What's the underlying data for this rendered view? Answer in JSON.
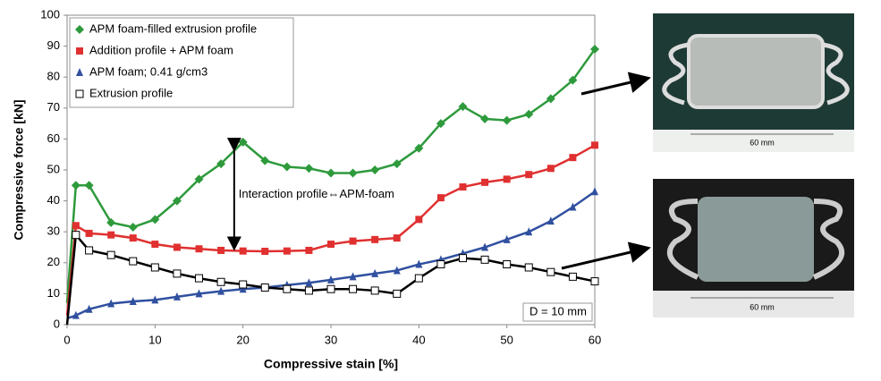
{
  "chart_data": {
    "type": "line",
    "x_label": "Compressive stain [%]",
    "y_label": "Compressive force [kN]",
    "xlim": [
      0,
      60
    ],
    "ylim": [
      0,
      100
    ],
    "xticks": [
      0,
      10,
      20,
      30,
      40,
      50,
      60
    ],
    "yticks": [
      0,
      10,
      20,
      30,
      40,
      50,
      60,
      70,
      80,
      90,
      100
    ],
    "grid": false,
    "legend": "upper left",
    "x": [
      0,
      1,
      2.5,
      5,
      7.5,
      10,
      12.5,
      15,
      17.5,
      20,
      22.5,
      25,
      27.5,
      30,
      32.5,
      35,
      37.5,
      40,
      42.5,
      45,
      47.5,
      50,
      52.5,
      55,
      57.5,
      60
    ],
    "series": [
      {
        "name": "APM foam-filled extrusion profile",
        "color": "#2e9a3c",
        "marker": "diamond",
        "values": [
          7,
          45,
          45,
          33,
          31.5,
          34,
          40,
          47,
          52,
          59,
          53,
          51,
          50.5,
          49,
          49,
          50,
          52,
          57,
          65,
          70.5,
          66.5,
          66,
          68,
          73,
          79,
          89
        ]
      },
      {
        "name": "Addition profile + APM foam",
        "color": "#e03030",
        "marker": "square",
        "values": [
          3,
          32,
          29.5,
          29,
          28,
          26,
          25,
          24.5,
          24,
          23.8,
          23.7,
          23.8,
          24,
          26,
          27,
          27.5,
          28,
          34,
          41,
          44.5,
          46,
          47,
          48.5,
          50.5,
          54,
          58
        ]
      },
      {
        "name": "APM foam; 0.41 g/cm3",
        "color": "#3050a0",
        "marker": "triangle",
        "values": [
          2,
          3,
          5,
          6.8,
          7.5,
          8,
          9,
          10,
          10.8,
          11.5,
          12,
          12.8,
          13.5,
          14.5,
          15.5,
          16.5,
          17.5,
          19.5,
          21,
          23,
          25,
          27.5,
          30,
          33.5,
          38,
          43
        ]
      },
      {
        "name": "Extrusion profile",
        "color": "#000000",
        "marker": "open-square",
        "values": [
          0,
          29,
          24,
          22.5,
          20.5,
          18.5,
          16.5,
          15,
          13.8,
          13,
          12,
          11.5,
          11,
          11.5,
          11.5,
          11,
          10,
          15,
          19.5,
          21.5,
          21,
          19.5,
          18.5,
          17,
          15.5,
          14
        ]
      }
    ],
    "annotation": "Interaction profile⇔APM-foam",
    "note": "D = 10 mm"
  },
  "photos": [
    {
      "scale_label": "60 mm"
    },
    {
      "scale_label": "60 mm"
    }
  ]
}
